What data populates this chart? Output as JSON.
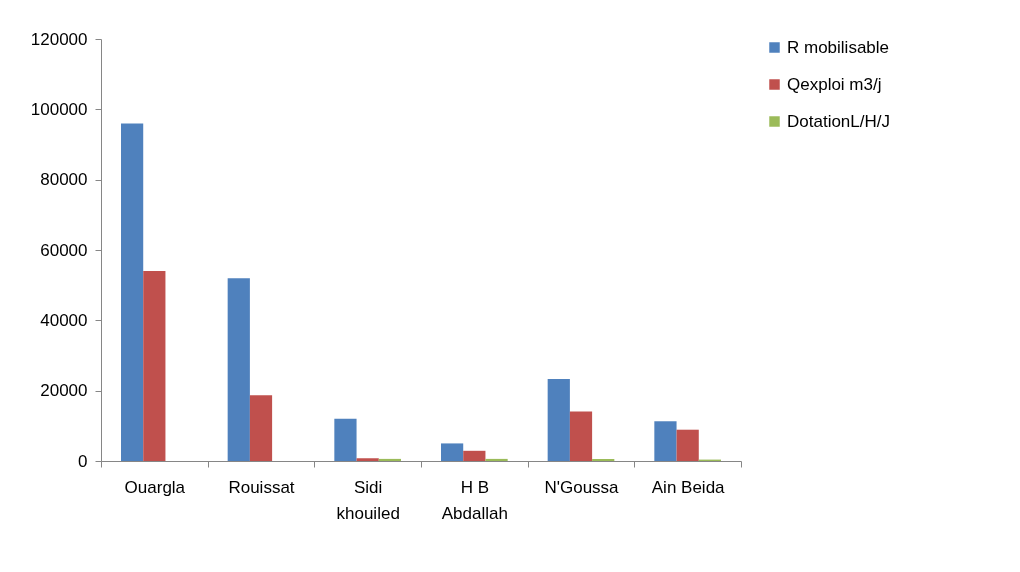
{
  "chart_data": {
    "type": "bar",
    "categories": [
      "Ouargla",
      "Rouissat",
      "Sidi khouiled",
      "H B Abdallah",
      "N'Goussa",
      "Ain Beida"
    ],
    "series": [
      {
        "name": "R mobilisable",
        "color": "#4f81bd",
        "values": [
          96000,
          52000,
          12000,
          5000,
          23300,
          11300
        ]
      },
      {
        "name": "Qexploi m3/j",
        "color": "#c0504d",
        "values": [
          54000,
          18700,
          800,
          2900,
          14100,
          8900
        ]
      },
      {
        "name": "DotationL/H/J",
        "color": "#9bbb59",
        "values": [
          null,
          null,
          600,
          600,
          600,
          400
        ]
      }
    ],
    "ylim": [
      0,
      120000
    ],
    "yticks": [
      0,
      20000,
      40000,
      60000,
      80000,
      100000,
      120000
    ],
    "grid": false,
    "legend": "right"
  }
}
